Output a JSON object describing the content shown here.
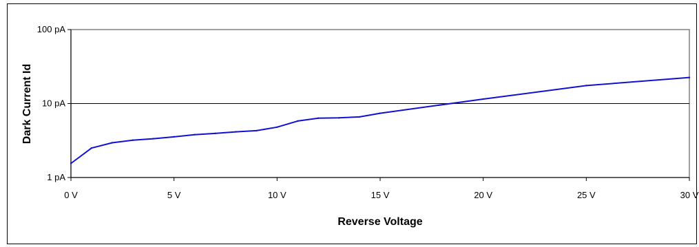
{
  "chart_data": {
    "type": "line",
    "title": "",
    "xlabel": "Reverse Voltage",
    "ylabel": "Dark Current Id",
    "x_scale": "linear",
    "y_scale": "log",
    "xlim": [
      0,
      30
    ],
    "ylim_pA": [
      1,
      100
    ],
    "x_ticks": [
      {
        "value": 0,
        "label": "0 V"
      },
      {
        "value": 5,
        "label": "5 V"
      },
      {
        "value": 10,
        "label": "10 V"
      },
      {
        "value": 15,
        "label": "15 V"
      },
      {
        "value": 20,
        "label": "20 V"
      },
      {
        "value": 25,
        "label": "25 V"
      },
      {
        "value": 30,
        "label": "30 V"
      }
    ],
    "y_ticks": [
      {
        "value": 1,
        "label": "1 pA"
      },
      {
        "value": 10,
        "label": "10 pA"
      },
      {
        "value": 100,
        "label": "100 pA"
      }
    ],
    "grid": {
      "horizontal_major": true,
      "vertical": false
    },
    "legend": "none",
    "series": [
      {
        "color": "#1010d0",
        "x": [
          0,
          1,
          2,
          3,
          4,
          5,
          6,
          7,
          8,
          9,
          10,
          11,
          12,
          13,
          14,
          15,
          20,
          25,
          30
        ],
        "y": [
          1.55,
          2.5,
          2.95,
          3.2,
          3.35,
          3.55,
          3.8,
          3.95,
          4.15,
          4.3,
          4.8,
          5.8,
          6.35,
          6.4,
          6.6,
          7.4,
          11.5,
          17.5,
          22.5
        ]
      }
    ]
  }
}
